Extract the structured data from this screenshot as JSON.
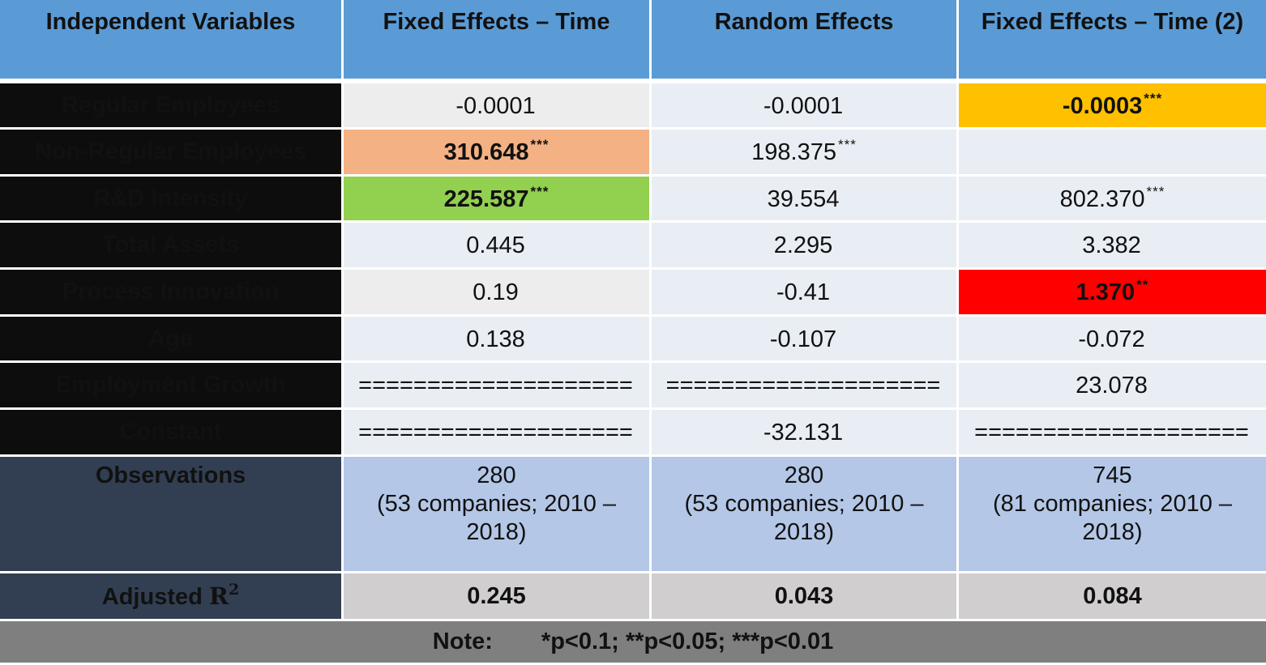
{
  "table": {
    "headers": [
      "Independent Variables",
      "Fixed Effects – Time",
      "Random Effects",
      "Fixed Effects – Time (2)"
    ],
    "rows": [
      {
        "label": "Regular Employees",
        "cells": [
          {
            "v": "-0.0001",
            "s": ""
          },
          {
            "v": "-0.0001",
            "s": ""
          },
          {
            "v": "-0.0003",
            "s": "***"
          }
        ]
      },
      {
        "label": "Non-Regular Employees",
        "cells": [
          {
            "v": "310.648",
            "s": "***"
          },
          {
            "v": "198.375",
            "s": "***"
          },
          {
            "v": "",
            "s": ""
          }
        ]
      },
      {
        "label": "R&D Intensity",
        "cells": [
          {
            "v": "225.587",
            "s": "***"
          },
          {
            "v": "39.554",
            "s": ""
          },
          {
            "v": "802.370",
            "s": "***"
          }
        ]
      },
      {
        "label": "Total Assets",
        "cells": [
          {
            "v": "0.445",
            "s": ""
          },
          {
            "v": "2.295",
            "s": ""
          },
          {
            "v": "3.382",
            "s": ""
          }
        ]
      },
      {
        "label": "Process Innovation",
        "cells": [
          {
            "v": "0.19",
            "s": ""
          },
          {
            "v": "-0.41",
            "s": ""
          },
          {
            "v": "1.370",
            "s": "**"
          }
        ]
      },
      {
        "label": "Age",
        "cells": [
          {
            "v": "0.138",
            "s": ""
          },
          {
            "v": "-0.107",
            "s": ""
          },
          {
            "v": "-0.072",
            "s": ""
          }
        ]
      },
      {
        "label": "Employment Growth",
        "cells": [
          {
            "v": "====================",
            "s": ""
          },
          {
            "v": "====================",
            "s": ""
          },
          {
            "v": "23.078",
            "s": ""
          }
        ]
      },
      {
        "label": "Constant",
        "cells": [
          {
            "v": "====================",
            "s": ""
          },
          {
            "v": "-32.131",
            "s": ""
          },
          {
            "v": "====================",
            "s": ""
          }
        ]
      }
    ],
    "observations": {
      "label": "Observations",
      "cells": [
        {
          "count": "280",
          "line2": "(53 companies; 2010 –",
          "line3": "2018)"
        },
        {
          "count": "280",
          "line2": "(53 companies; 2010 –",
          "line3": "2018)"
        },
        {
          "count": "745",
          "line2": "(81 companies; 2010 –",
          "line3": "2018)"
        }
      ]
    },
    "adjusted_r2": {
      "label_text": "Adjusted ",
      "label_r": "R",
      "label_sup": "2",
      "values": [
        "0.245",
        "0.043",
        "0.084"
      ]
    },
    "note": {
      "label": "Note:",
      "text": "*p<0.1; **p<0.05; ***p<0.01"
    }
  },
  "colors": {
    "header_blue": "#5b9bd5",
    "label_black": "#0d0d0d",
    "label_navy": "#323f52",
    "highlight_orange": "#f4b183",
    "highlight_green": "#92d050",
    "highlight_amber": "#ffc000",
    "highlight_red": "#ff0000",
    "note_gray": "#7f7f7f"
  }
}
